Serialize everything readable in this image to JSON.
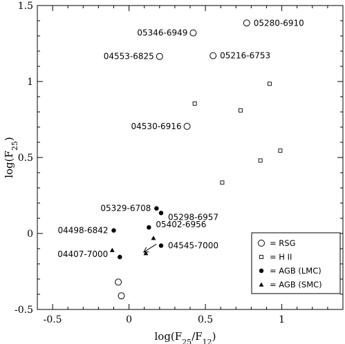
{
  "chart_data": {
    "type": "scatter",
    "xlabel": "log(F25/F12)",
    "ylabel": "log(F25)",
    "xlim": [
      -0.6,
      1.4
    ],
    "ylim": [
      -0.5,
      1.5
    ],
    "x_ticks": [
      "-0.5",
      "0",
      "0.5",
      "1"
    ],
    "y_ticks": [
      "-0.5",
      "0",
      "0.5",
      "1",
      "1.5"
    ],
    "legend_position": "bottom-right",
    "legend": [
      {
        "symbol": "open-circle",
        "label": "= RSG"
      },
      {
        "symbol": "open-square",
        "label": "= H II"
      },
      {
        "symbol": "filled-circle",
        "label": "= AGB (LMC)"
      },
      {
        "symbol": "filled-triangle",
        "label": "= AGB (SMC)"
      }
    ],
    "series": [
      {
        "name": "RSG",
        "marker": "open-circle",
        "points": [
          {
            "x": 0.77,
            "y": 1.385,
            "label": "05280-6910"
          },
          {
            "x": 0.42,
            "y": 1.32,
            "label": "05346-6949"
          },
          {
            "x": 0.2,
            "y": 1.165,
            "label": "04553-6825"
          },
          {
            "x": 0.55,
            "y": 1.17,
            "label": "05216-6753"
          },
          {
            "x": 0.38,
            "y": 0.705,
            "label": "04530-6916"
          },
          {
            "x": -0.07,
            "y": -0.32,
            "label": ""
          },
          {
            "x": -0.05,
            "y": -0.41,
            "label": ""
          }
        ]
      },
      {
        "name": "H II",
        "marker": "open-square",
        "points": [
          {
            "x": 0.92,
            "y": 0.985
          },
          {
            "x": 0.43,
            "y": 0.855
          },
          {
            "x": 0.73,
            "y": 0.81
          },
          {
            "x": 0.99,
            "y": 0.545
          },
          {
            "x": 0.86,
            "y": 0.48
          },
          {
            "x": 0.61,
            "y": 0.335
          }
        ]
      },
      {
        "name": "AGB (LMC)",
        "marker": "filled-circle",
        "points": [
          {
            "x": 0.18,
            "y": 0.165,
            "label": "05329-6708"
          },
          {
            "x": 0.21,
            "y": 0.135,
            "label": "05298-6957"
          },
          {
            "x": -0.1,
            "y": 0.02,
            "label": "04498-6842"
          },
          {
            "x": 0.13,
            "y": 0.04,
            "label": "05402-6956"
          },
          {
            "x": 0.21,
            "y": -0.08,
            "label": "04545-7000"
          },
          {
            "x": -0.06,
            "y": -0.155,
            "label": ""
          }
        ]
      },
      {
        "name": "AGB (SMC)",
        "marker": "filled-triangle",
        "points": [
          {
            "x": 0.16,
            "y": -0.03,
            "label": ""
          },
          {
            "x": -0.11,
            "y": -0.11,
            "label": "04407-7000"
          },
          {
            "x": 0.11,
            "y": -0.13,
            "label": ""
          }
        ]
      }
    ],
    "annotations": [
      {
        "type": "arrow",
        "from": [
          0.18,
          -0.07
        ],
        "to": [
          0.1,
          -0.12
        ]
      }
    ]
  }
}
